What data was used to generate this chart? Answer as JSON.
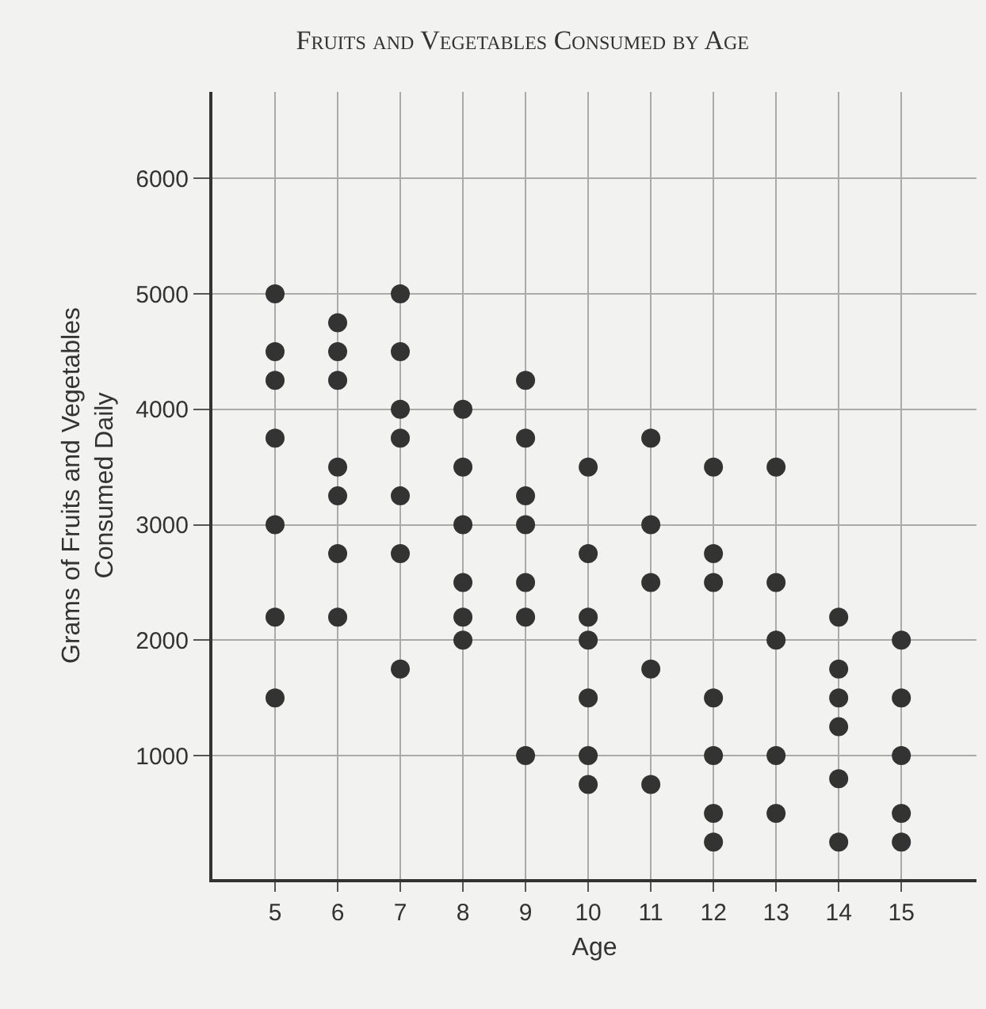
{
  "chart_data": {
    "type": "scatter",
    "title": "Fruits and Vegetables Consumed by Age",
    "xlabel": "Age",
    "ylabel": "Grams of Fruits and Vegetables\nConsumed Daily",
    "x": [
      5,
      5,
      5,
      5,
      5,
      5,
      5,
      6,
      6,
      6,
      6,
      6,
      6,
      6,
      7,
      7,
      7,
      7,
      7,
      7,
      7,
      8,
      8,
      8,
      8,
      8,
      8,
      9,
      9,
      9,
      9,
      9,
      9,
      9,
      10,
      10,
      10,
      10,
      10,
      10,
      10,
      11,
      11,
      11,
      11,
      11,
      12,
      12,
      12,
      12,
      12,
      12,
      12,
      13,
      13,
      13,
      13,
      13,
      14,
      14,
      14,
      14,
      14,
      14,
      15,
      15,
      15,
      15,
      15
    ],
    "values": [
      5000,
      4500,
      4250,
      3750,
      3000,
      2200,
      1500,
      4750,
      4500,
      4250,
      3500,
      3250,
      2750,
      2200,
      5000,
      4500,
      4000,
      3750,
      3250,
      2750,
      1750,
      4000,
      3500,
      3000,
      2500,
      2200,
      2000,
      4250,
      3750,
      3250,
      3000,
      2500,
      2200,
      1000,
      3500,
      2750,
      2200,
      2000,
      1500,
      1000,
      750,
      3750,
      3000,
      2500,
      1750,
      750,
      3500,
      2750,
      2500,
      1500,
      1000,
      500,
      250,
      3500,
      2500,
      2000,
      1000,
      500,
      2200,
      1750,
      1500,
      1250,
      800,
      250,
      2000,
      1500,
      1000,
      500,
      250
    ],
    "color": "#333333",
    "marker": "circle",
    "grid": true,
    "xlim": [
      4,
      16.2
    ],
    "ylim": [
      -70,
      6750
    ],
    "xticks": [
      5,
      6,
      7,
      8,
      9,
      10,
      11,
      12,
      13,
      14,
      15
    ],
    "yticks": [
      1000,
      2000,
      3000,
      4000,
      5000,
      6000
    ]
  }
}
